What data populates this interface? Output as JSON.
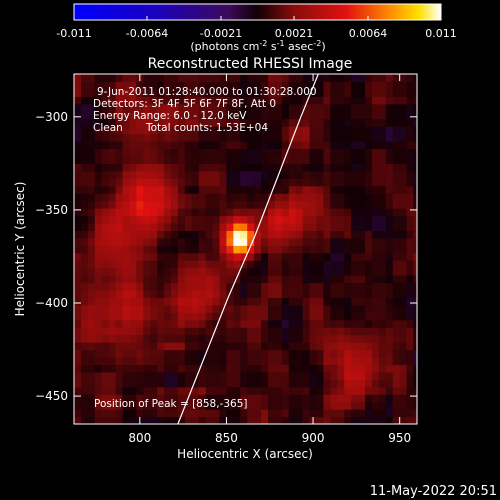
{
  "chart_data": {
    "type": "heatmap",
    "title": "Reconstructed RHESSI Image",
    "xlabel": "Heliocentric X (arcsec)",
    "ylabel": "Heliocentric Y (arcsec)",
    "xlim": [
      762,
      960
    ],
    "ylim": [
      -465,
      -277
    ],
    "xticks": [
      800,
      850,
      900,
      950
    ],
    "yticks": [
      -300,
      -350,
      -400,
      -450
    ],
    "colorbar": {
      "ticks": [
        "-0.011",
        "-0.0064",
        "-0.0021",
        "0.0021",
        "0.0064",
        "0.011"
      ],
      "min": -0.011,
      "max": 0.011,
      "unit_parts": [
        "(photons cm",
        "-2",
        " s",
        "-1",
        " asec",
        "-2",
        ")"
      ]
    },
    "annotations": [
      "9-Jun-2011 01:28:40.000 to 01:30:28.000",
      "Detectors: 3F 4F 5F 6F 7F 8F, Att 0",
      "Energy Range: 6.0 - 12.0 keV",
      "Clean",
      "Total counts: 1.53E+04"
    ],
    "peak_label": "Position of Peak = [858,-365]",
    "peak": {
      "x": 858,
      "y": -365,
      "value": 0.011
    },
    "secondary_sources": [
      {
        "x": 805,
        "y": -348,
        "value": 0.0045
      },
      {
        "x": 783,
        "y": -365,
        "value": 0.003
      },
      {
        "x": 833,
        "y": -397,
        "value": 0.0035
      },
      {
        "x": 885,
        "y": -352,
        "value": 0.0035
      },
      {
        "x": 790,
        "y": -405,
        "value": 0.003
      },
      {
        "x": 925,
        "y": -433,
        "value": 0.003
      },
      {
        "x": 800,
        "y": -300,
        "value": 0.0025
      }
    ],
    "limb_curve": [
      [
        822,
        -465
      ],
      [
        851,
        -397
      ],
      [
        866,
        -365
      ],
      [
        893,
        -300
      ],
      [
        903,
        -277
      ]
    ]
  },
  "footer": {
    "timestamp": "11-May-2022 20:51"
  }
}
